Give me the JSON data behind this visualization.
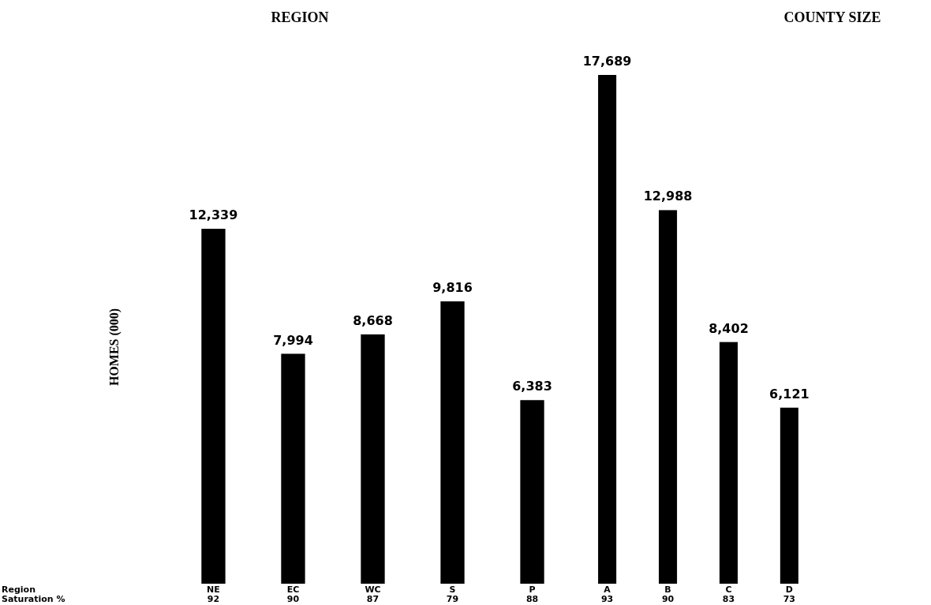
{
  "chart_data": [
    {
      "type": "bar",
      "title": "REGION",
      "ylabel": "HOMES (000)",
      "categories": [
        "NE\n92",
        "EC\n90",
        "WC\n87",
        "S\n79",
        "P\n88"
      ],
      "values": [
        12339,
        7994,
        8668,
        9816,
        6383
      ],
      "value_labels": [
        "12,339",
        "7,994",
        "8,668",
        "9,816",
        "6,383"
      ],
      "color": "#000000",
      "annotations": [
        "Region",
        "Saturation %"
      ]
    },
    {
      "type": "bar",
      "title": "COUNTY SIZE",
      "categories": [
        "A\n93",
        "B\n90",
        "C\n83",
        "D\n73"
      ],
      "values": [
        17689,
        12988,
        8402,
        6121
      ],
      "value_labels": [
        "17,689",
        "12,988",
        "8,402",
        "6,121"
      ],
      "color": "#000000"
    }
  ]
}
